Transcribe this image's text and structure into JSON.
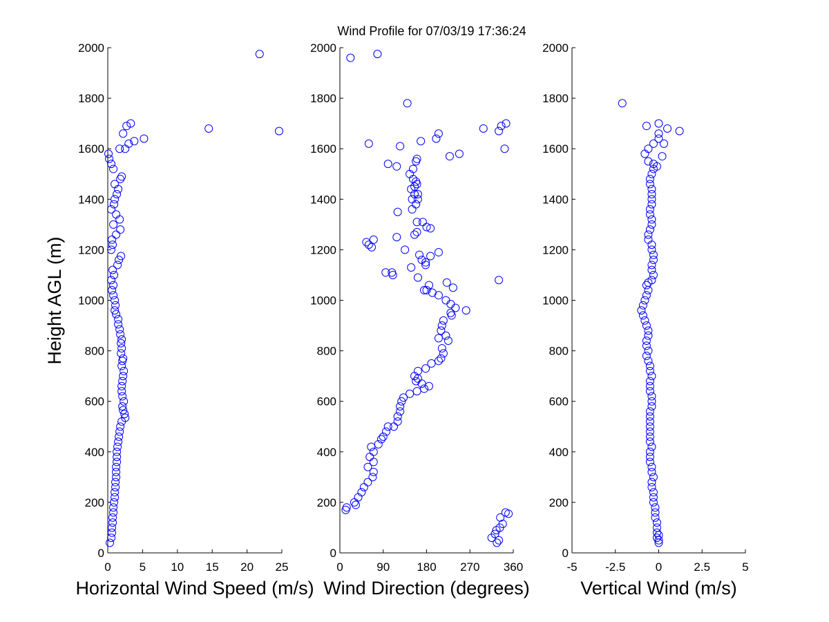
{
  "chart_data": {
    "type": "scatter",
    "title": "Wind Profile for  07/03/19 17:36:24",
    "ylabel": "Height AGL (m)",
    "ylim": [
      0,
      2000
    ],
    "yticks": [
      0,
      200,
      400,
      600,
      800,
      1000,
      1200,
      1400,
      1600,
      1800,
      2000
    ],
    "marker_color": "#0000ff",
    "panels": [
      {
        "name": "speed",
        "xlabel": "Horizontal Wind Speed (m/s)",
        "xlim": [
          0,
          25
        ],
        "xticks": [
          0,
          5,
          10,
          15,
          20,
          25
        ],
        "xtick_labels": [
          "0",
          "5",
          "10",
          "15",
          "20",
          "25"
        ],
        "points": [
          [
            0.3,
            40
          ],
          [
            0.5,
            60
          ],
          [
            0.6,
            80
          ],
          [
            0.6,
            100
          ],
          [
            0.7,
            120
          ],
          [
            0.7,
            140
          ],
          [
            0.8,
            160
          ],
          [
            0.8,
            180
          ],
          [
            0.9,
            200
          ],
          [
            1.0,
            220
          ],
          [
            1.0,
            240
          ],
          [
            1.1,
            260
          ],
          [
            1.1,
            280
          ],
          [
            1.2,
            300
          ],
          [
            1.2,
            320
          ],
          [
            1.2,
            340
          ],
          [
            1.3,
            360
          ],
          [
            1.3,
            380
          ],
          [
            1.3,
            400
          ],
          [
            1.4,
            420
          ],
          [
            1.5,
            440
          ],
          [
            1.6,
            460
          ],
          [
            1.7,
            480
          ],
          [
            1.8,
            500
          ],
          [
            2.0,
            520
          ],
          [
            2.5,
            535
          ],
          [
            2.4,
            550
          ],
          [
            2.2,
            565
          ],
          [
            2.1,
            580
          ],
          [
            2.3,
            600
          ],
          [
            2.1,
            620
          ],
          [
            2.0,
            640
          ],
          [
            2.0,
            660
          ],
          [
            2.1,
            680
          ],
          [
            2.2,
            700
          ],
          [
            2.3,
            720
          ],
          [
            2.0,
            740
          ],
          [
            2.1,
            760
          ],
          [
            2.2,
            770
          ],
          [
            1.9,
            790
          ],
          [
            2.0,
            810
          ],
          [
            1.9,
            830
          ],
          [
            2.0,
            845
          ],
          [
            1.8,
            865
          ],
          [
            1.7,
            885
          ],
          [
            1.5,
            905
          ],
          [
            1.5,
            925
          ],
          [
            1.2,
            945
          ],
          [
            1.0,
            960
          ],
          [
            1.1,
            980
          ],
          [
            1.0,
            1000
          ],
          [
            0.8,
            1020
          ],
          [
            0.6,
            1040
          ],
          [
            0.8,
            1060
          ],
          [
            0.5,
            1080
          ],
          [
            0.9,
            1100
          ],
          [
            0.7,
            1120
          ],
          [
            1.4,
            1140
          ],
          [
            1.6,
            1160
          ],
          [
            1.9,
            1175
          ],
          [
            0.5,
            1200
          ],
          [
            0.7,
            1220
          ],
          [
            0.6,
            1240
          ],
          [
            1.2,
            1260
          ],
          [
            1.8,
            1280
          ],
          [
            0.8,
            1300
          ],
          [
            1.7,
            1320
          ],
          [
            1.2,
            1340
          ],
          [
            0.5,
            1360
          ],
          [
            0.9,
            1380
          ],
          [
            1.0,
            1400
          ],
          [
            1.3,
            1420
          ],
          [
            1.5,
            1440
          ],
          [
            1.0,
            1460
          ],
          [
            1.8,
            1480
          ],
          [
            2.0,
            1490
          ],
          [
            0.8,
            1520
          ],
          [
            0.5,
            1540
          ],
          [
            0.2,
            1560
          ],
          [
            0.1,
            1580
          ],
          [
            1.7,
            1600
          ],
          [
            2.5,
            1600
          ],
          [
            3.0,
            1620
          ],
          [
            3.8,
            1630
          ],
          [
            5.2,
            1640
          ],
          [
            2.2,
            1660
          ],
          [
            2.7,
            1690
          ],
          [
            3.3,
            1700
          ],
          [
            14.5,
            1680
          ],
          [
            24.6,
            1670
          ],
          [
            21.8,
            1975
          ]
        ]
      },
      {
        "name": "direction",
        "xlabel": "Wind Direction (degrees)",
        "xlim": [
          0,
          360
        ],
        "xticks": [
          0,
          90,
          180,
          270,
          360
        ],
        "xtick_labels": [
          "0",
          "90",
          "180",
          "270",
          "360"
        ],
        "points": [
          [
            315,
            60
          ],
          [
            322,
            75
          ],
          [
            325,
            90
          ],
          [
            332,
            100
          ],
          [
            338,
            115
          ],
          [
            333,
            140
          ],
          [
            350,
            155
          ],
          [
            344,
            160
          ],
          [
            326,
            40
          ],
          [
            330,
            50
          ],
          [
            12,
            170
          ],
          [
            14,
            180
          ],
          [
            33,
            190
          ],
          [
            30,
            200
          ],
          [
            38,
            220
          ],
          [
            45,
            240
          ],
          [
            50,
            260
          ],
          [
            58,
            280
          ],
          [
            68,
            300
          ],
          [
            70,
            320
          ],
          [
            58,
            340
          ],
          [
            70,
            360
          ],
          [
            62,
            380
          ],
          [
            70,
            400
          ],
          [
            65,
            420
          ],
          [
            80,
            430
          ],
          [
            86,
            450
          ],
          [
            90,
            460
          ],
          [
            96,
            480
          ],
          [
            100,
            500
          ],
          [
            112,
            500
          ],
          [
            120,
            520
          ],
          [
            120,
            540
          ],
          [
            125,
            560
          ],
          [
            125,
            580
          ],
          [
            128,
            600
          ],
          [
            132,
            615
          ],
          [
            145,
            630
          ],
          [
            160,
            640
          ],
          [
            175,
            650
          ],
          [
            185,
            660
          ],
          [
            170,
            670
          ],
          [
            158,
            680
          ],
          [
            162,
            690
          ],
          [
            155,
            700
          ],
          [
            162,
            720
          ],
          [
            178,
            730
          ],
          [
            190,
            750
          ],
          [
            205,
            760
          ],
          [
            210,
            770
          ],
          [
            215,
            790
          ],
          [
            212,
            810
          ],
          [
            225,
            840
          ],
          [
            205,
            850
          ],
          [
            220,
            860
          ],
          [
            210,
            880
          ],
          [
            212,
            900
          ],
          [
            215,
            920
          ],
          [
            232,
            940
          ],
          [
            230,
            950
          ],
          [
            240,
            970
          ],
          [
            262,
            960
          ],
          [
            230,
            985
          ],
          [
            220,
            1000
          ],
          [
            205,
            1020
          ],
          [
            192,
            1030
          ],
          [
            180,
            1040
          ],
          [
            175,
            1040
          ],
          [
            185,
            1060
          ],
          [
            222,
            1070
          ],
          [
            235,
            1050
          ],
          [
            162,
            1090
          ],
          [
            110,
            1100
          ],
          [
            108,
            1110
          ],
          [
            95,
            1110
          ],
          [
            148,
            1130
          ],
          [
            178,
            1140
          ],
          [
            178,
            1150
          ],
          [
            170,
            1160
          ],
          [
            188,
            1175
          ],
          [
            165,
            1180
          ],
          [
            205,
            1190
          ],
          [
            135,
            1200
          ],
          [
            55,
            1230
          ],
          [
            60,
            1220
          ],
          [
            66,
            1210
          ],
          [
            70,
            1240
          ],
          [
            118,
            1250
          ],
          [
            155,
            1260
          ],
          [
            160,
            1270
          ],
          [
            180,
            1290
          ],
          [
            188,
            1285
          ],
          [
            172,
            1310
          ],
          [
            160,
            1310
          ],
          [
            120,
            1350
          ],
          [
            150,
            1360
          ],
          [
            158,
            1380
          ],
          [
            150,
            1400
          ],
          [
            162,
            1400
          ],
          [
            155,
            1420
          ],
          [
            162,
            1420
          ],
          [
            148,
            1440
          ],
          [
            155,
            1450
          ],
          [
            160,
            1460
          ],
          [
            158,
            1470
          ],
          [
            152,
            1480
          ],
          [
            145,
            1500
          ],
          [
            152,
            1520
          ],
          [
            158,
            1550
          ],
          [
            160,
            1560
          ],
          [
            100,
            1540
          ],
          [
            118,
            1530
          ],
          [
            228,
            1570
          ],
          [
            248,
            1580
          ],
          [
            60,
            1620
          ],
          [
            125,
            1610
          ],
          [
            168,
            1630
          ],
          [
            200,
            1640
          ],
          [
            205,
            1660
          ],
          [
            298,
            1680
          ],
          [
            330,
            1670
          ],
          [
            335,
            1690
          ],
          [
            345,
            1700
          ],
          [
            342,
            1600
          ],
          [
            330,
            1080
          ],
          [
            140,
            1780
          ],
          [
            22,
            1960
          ],
          [
            78,
            1975
          ]
        ]
      },
      {
        "name": "vertical",
        "xlabel": "Vertical Wind (m/s)",
        "xlim": [
          -5,
          5
        ],
        "xticks": [
          -5,
          -2.5,
          0,
          2.5,
          5
        ],
        "xtick_labels": [
          "-5",
          "-2.5",
          "0",
          "2.5",
          "5"
        ],
        "points": [
          [
            0.0,
            40
          ],
          [
            0.0,
            50
          ],
          [
            -0.1,
            60
          ],
          [
            0.0,
            70
          ],
          [
            -0.1,
            80
          ],
          [
            -0.1,
            100
          ],
          [
            -0.1,
            120
          ],
          [
            -0.2,
            140
          ],
          [
            -0.2,
            160
          ],
          [
            -0.2,
            180
          ],
          [
            -0.3,
            200
          ],
          [
            -0.3,
            220
          ],
          [
            -0.3,
            240
          ],
          [
            -0.4,
            260
          ],
          [
            -0.4,
            280
          ],
          [
            -0.3,
            300
          ],
          [
            -0.4,
            320
          ],
          [
            -0.4,
            340
          ],
          [
            -0.5,
            360
          ],
          [
            -0.5,
            380
          ],
          [
            -0.5,
            400
          ],
          [
            -0.4,
            420
          ],
          [
            -0.5,
            440
          ],
          [
            -0.5,
            460
          ],
          [
            -0.5,
            480
          ],
          [
            -0.5,
            500
          ],
          [
            -0.5,
            520
          ],
          [
            -0.5,
            540
          ],
          [
            -0.5,
            560
          ],
          [
            -0.4,
            580
          ],
          [
            -0.4,
            600
          ],
          [
            -0.4,
            620
          ],
          [
            -0.5,
            640
          ],
          [
            -0.5,
            660
          ],
          [
            -0.5,
            680
          ],
          [
            -0.4,
            700
          ],
          [
            -0.5,
            720
          ],
          [
            -0.5,
            740
          ],
          [
            -0.6,
            760
          ],
          [
            -0.7,
            780
          ],
          [
            -0.6,
            800
          ],
          [
            -0.7,
            820
          ],
          [
            -0.7,
            840
          ],
          [
            -0.6,
            860
          ],
          [
            -0.6,
            880
          ],
          [
            -0.7,
            900
          ],
          [
            -0.8,
            920
          ],
          [
            -0.9,
            940
          ],
          [
            -1.0,
            960
          ],
          [
            -0.9,
            980
          ],
          [
            -0.8,
            1000
          ],
          [
            -0.7,
            1020
          ],
          [
            -0.6,
            1040
          ],
          [
            -0.7,
            1060
          ],
          [
            -0.6,
            1070
          ],
          [
            -0.4,
            1080
          ],
          [
            -0.3,
            1100
          ],
          [
            -0.4,
            1120
          ],
          [
            -0.4,
            1140
          ],
          [
            -0.3,
            1160
          ],
          [
            -0.3,
            1180
          ],
          [
            -0.4,
            1200
          ],
          [
            -0.4,
            1220
          ],
          [
            -0.6,
            1240
          ],
          [
            -0.6,
            1260
          ],
          [
            -0.5,
            1280
          ],
          [
            -0.4,
            1300
          ],
          [
            -0.4,
            1320
          ],
          [
            -0.5,
            1340
          ],
          [
            -0.5,
            1360
          ],
          [
            -0.4,
            1380
          ],
          [
            -0.4,
            1400
          ],
          [
            -0.4,
            1420
          ],
          [
            -0.4,
            1440
          ],
          [
            -0.5,
            1460
          ],
          [
            -0.5,
            1480
          ],
          [
            -0.4,
            1500
          ],
          [
            -0.3,
            1520
          ],
          [
            -0.3,
            1540
          ],
          [
            -0.6,
            1550
          ],
          [
            -0.1,
            1530
          ],
          [
            -0.8,
            1580
          ],
          [
            -0.6,
            1600
          ],
          [
            -0.3,
            1620
          ],
          [
            0.0,
            1640
          ],
          [
            0.0,
            1660
          ],
          [
            0.0,
            1700
          ],
          [
            0.3,
            1620
          ],
          [
            0.5,
            1680
          ],
          [
            1.2,
            1670
          ],
          [
            -0.7,
            1690
          ],
          [
            0.2,
            1570
          ],
          [
            -2.1,
            1780
          ]
        ]
      }
    ]
  }
}
